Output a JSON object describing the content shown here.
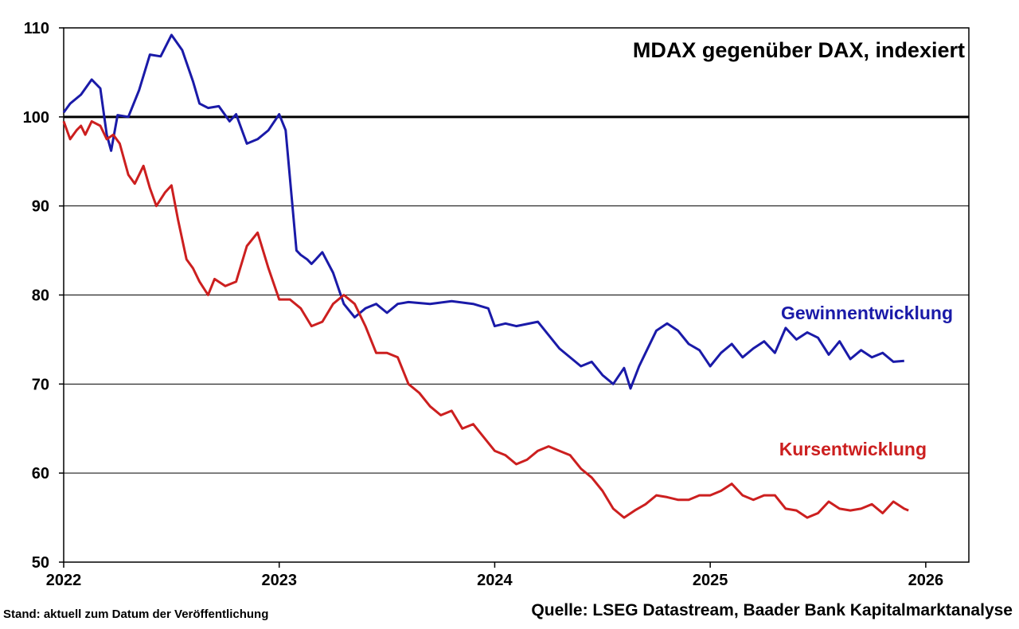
{
  "chart_data": {
    "type": "line",
    "title": "MDAX gegenüber DAX, indexiert",
    "xlabel": "",
    "ylabel": "",
    "xlim": [
      2022.0,
      2026.2
    ],
    "ylim": [
      50,
      110
    ],
    "x_ticks": [
      2022,
      2023,
      2024,
      2025,
      2026
    ],
    "x_tick_labels": [
      "2022",
      "2023",
      "2024",
      "2025",
      "2026"
    ],
    "y_ticks": [
      50,
      60,
      70,
      80,
      90,
      100,
      110
    ],
    "y_tick_labels": [
      "50",
      "60",
      "70",
      "80",
      "90",
      "100",
      "110"
    ],
    "grid": "horizontal",
    "reference_line": 100,
    "series": [
      {
        "name": "Gewinnentwicklung",
        "color": "#1a1aa8",
        "x": [
          2022.0,
          2022.03,
          2022.08,
          2022.13,
          2022.17,
          2022.2,
          2022.22,
          2022.25,
          2022.3,
          2022.35,
          2022.4,
          2022.45,
          2022.5,
          2022.55,
          2022.6,
          2022.63,
          2022.67,
          2022.72,
          2022.77,
          2022.8,
          2022.85,
          2022.9,
          2022.95,
          2023.0,
          2023.03,
          2023.08,
          2023.1,
          2023.13,
          2023.15,
          2023.17,
          2023.2,
          2023.25,
          2023.3,
          2023.35,
          2023.4,
          2023.45,
          2023.5,
          2023.55,
          2023.6,
          2023.7,
          2023.8,
          2023.9,
          2023.97,
          2024.0,
          2024.05,
          2024.1,
          2024.2,
          2024.3,
          2024.4,
          2024.45,
          2024.5,
          2024.55,
          2024.6,
          2024.63,
          2024.67,
          2024.7,
          2024.75,
          2024.8,
          2024.85,
          2024.9,
          2024.95,
          2025.0,
          2025.05,
          2025.1,
          2025.15,
          2025.2,
          2025.25,
          2025.3,
          2025.35,
          2025.4,
          2025.45,
          2025.5,
          2025.55,
          2025.6,
          2025.65,
          2025.7,
          2025.75,
          2025.8,
          2025.85,
          2025.9
        ],
        "values": [
          100.5,
          101.5,
          102.5,
          104.2,
          103.2,
          98.0,
          96.2,
          100.2,
          100.0,
          103.0,
          107.0,
          106.8,
          109.2,
          107.5,
          104.0,
          101.5,
          101.0,
          101.2,
          99.5,
          100.3,
          97.0,
          97.5,
          98.5,
          100.3,
          98.5,
          85.0,
          84.5,
          84.0,
          83.5,
          84.0,
          84.8,
          82.5,
          79.0,
          77.5,
          78.5,
          79.0,
          78.0,
          79.0,
          79.2,
          79.0,
          79.3,
          79.0,
          78.5,
          76.5,
          76.8,
          76.5,
          77.0,
          74.0,
          72.0,
          72.5,
          71.0,
          70.0,
          71.8,
          69.5,
          72.0,
          73.5,
          76.0,
          76.8,
          76.0,
          74.5,
          73.8,
          72.0,
          73.5,
          74.5,
          73.0,
          74.0,
          74.8,
          73.5,
          76.3,
          75.0,
          75.8,
          75.2,
          73.3,
          74.8,
          72.8,
          73.8,
          73.0,
          73.5,
          72.5,
          72.6
        ]
      },
      {
        "name": "Kursentwicklung",
        "color": "#cc1f1f",
        "x": [
          2022.0,
          2022.03,
          2022.06,
          2022.08,
          2022.1,
          2022.13,
          2022.17,
          2022.2,
          2022.23,
          2022.26,
          2022.3,
          2022.33,
          2022.37,
          2022.4,
          2022.43,
          2022.47,
          2022.5,
          2022.53,
          2022.57,
          2022.6,
          2022.63,
          2022.67,
          2022.7,
          2022.75,
          2022.8,
          2022.85,
          2022.9,
          2022.95,
          2023.0,
          2023.05,
          2023.1,
          2023.15,
          2023.2,
          2023.25,
          2023.3,
          2023.35,
          2023.4,
          2023.45,
          2023.5,
          2023.55,
          2023.6,
          2023.65,
          2023.7,
          2023.75,
          2023.8,
          2023.85,
          2023.9,
          2023.95,
          2024.0,
          2024.05,
          2024.1,
          2024.15,
          2024.2,
          2024.25,
          2024.3,
          2024.35,
          2024.4,
          2024.45,
          2024.5,
          2024.55,
          2024.6,
          2024.65,
          2024.7,
          2024.75,
          2024.8,
          2024.85,
          2024.9,
          2024.95,
          2025.0,
          2025.05,
          2025.1,
          2025.15,
          2025.2,
          2025.25,
          2025.3,
          2025.35,
          2025.4,
          2025.45,
          2025.5,
          2025.55,
          2025.6,
          2025.65,
          2025.7,
          2025.75,
          2025.8,
          2025.85,
          2025.9,
          2025.92
        ],
        "values": [
          99.5,
          97.5,
          98.5,
          99.0,
          98.0,
          99.5,
          99.0,
          97.5,
          98.0,
          97.0,
          93.5,
          92.5,
          94.5,
          92.0,
          90.0,
          91.5,
          92.3,
          88.5,
          84.0,
          83.0,
          81.5,
          80.0,
          81.8,
          81.0,
          81.5,
          85.5,
          87.0,
          83.0,
          79.5,
          79.5,
          78.5,
          76.5,
          77.0,
          79.0,
          80.0,
          79.0,
          76.5,
          73.5,
          73.5,
          73.0,
          70.0,
          69.0,
          67.5,
          66.5,
          67.0,
          65.0,
          65.5,
          64.0,
          62.5,
          62.0,
          61.0,
          61.5,
          62.5,
          63.0,
          62.5,
          62.0,
          60.5,
          59.5,
          58.0,
          56.0,
          55.0,
          55.8,
          56.5,
          57.5,
          57.3,
          57.0,
          57.0,
          57.5,
          57.5,
          58.0,
          58.8,
          57.5,
          57.0,
          57.5,
          57.5,
          56.0,
          55.8,
          55.0,
          55.5,
          56.8,
          56.0,
          55.8,
          56.0,
          56.5,
          55.5,
          56.8,
          56.0,
          55.8
        ]
      }
    ]
  },
  "footer": {
    "stand": "Stand: aktuell zum Datum der Veröffentlichung",
    "quelle": "Quelle: LSEG Datastream, Baader Bank Kapitalmarktanalyse"
  }
}
